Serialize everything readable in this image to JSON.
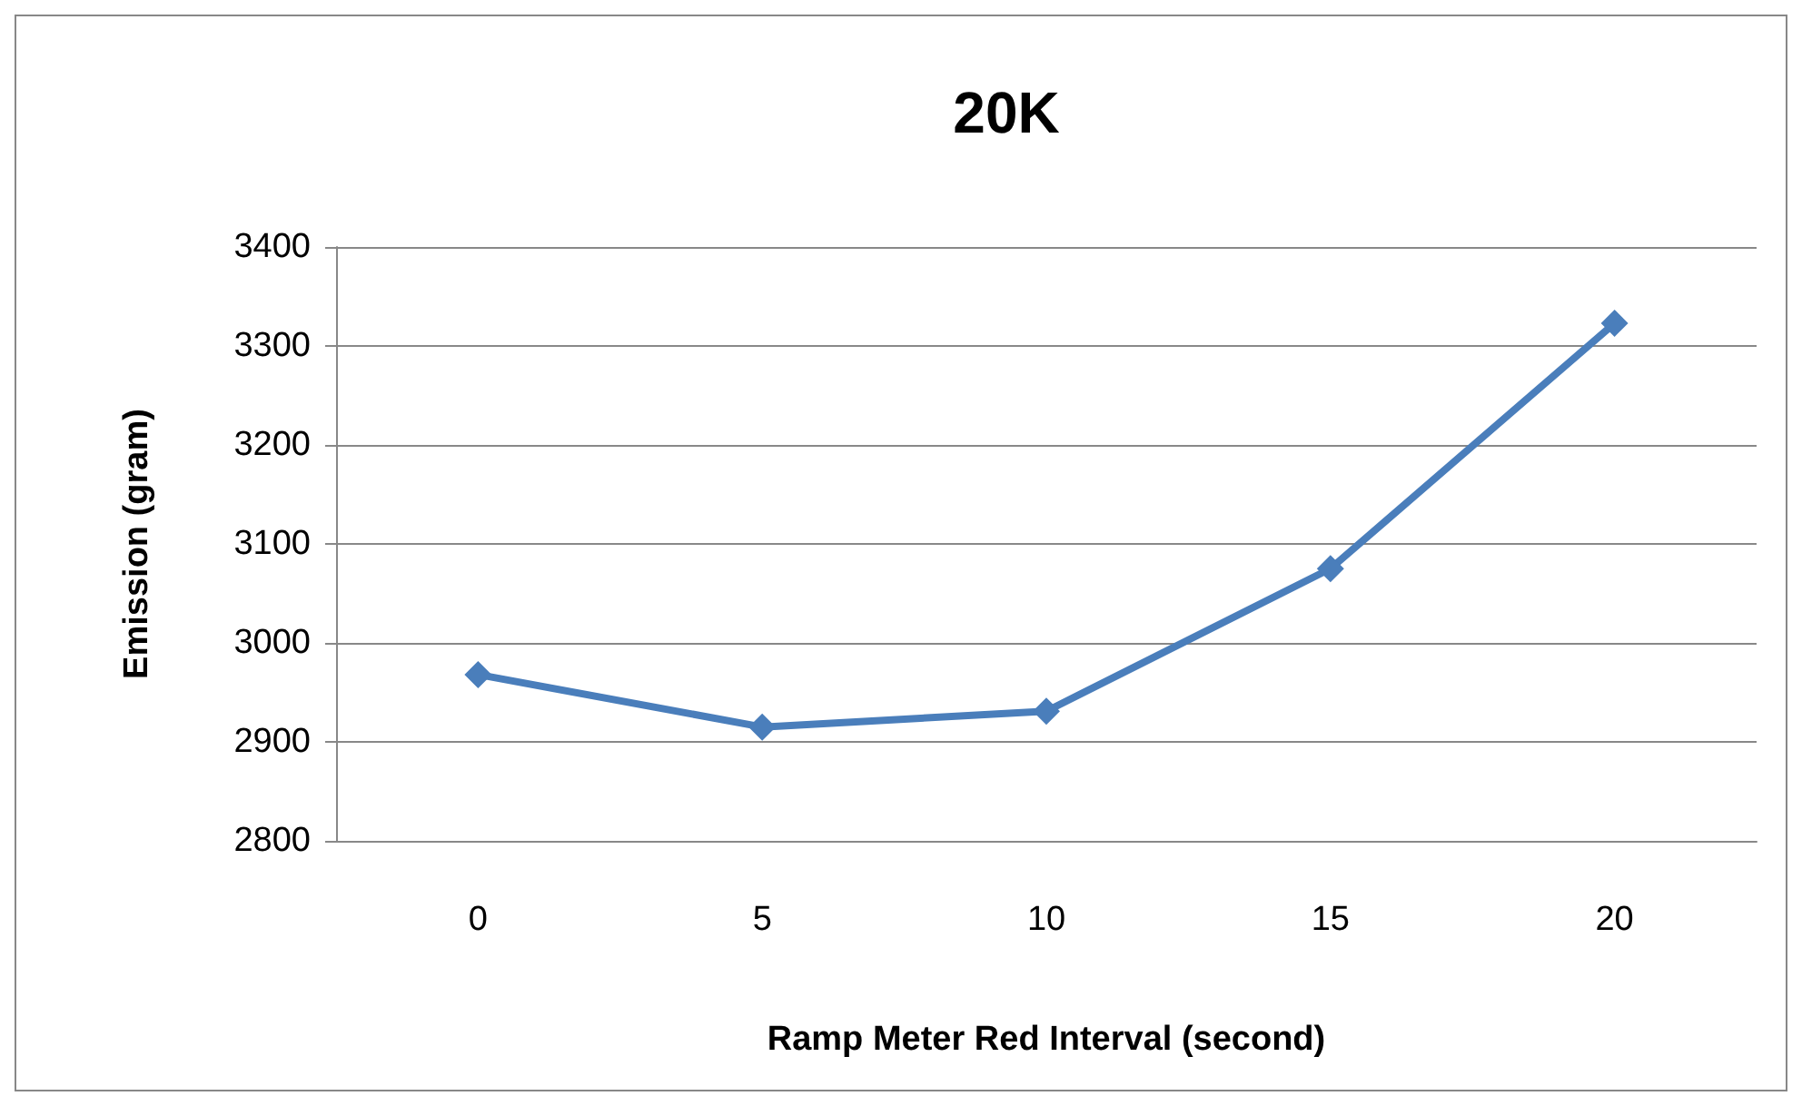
{
  "chart_data": {
    "type": "line",
    "title": "20K",
    "xlabel": "Ramp Meter Red Interval (second)",
    "ylabel": "Emission (gram)",
    "categories": [
      "0",
      "5",
      "10",
      "15",
      "20"
    ],
    "series": [
      {
        "color": "#4a7ebb",
        "values": [
          2968,
          2915,
          2931,
          3075,
          3323
        ]
      }
    ],
    "ylim": [
      2800,
      3400
    ],
    "yticks": [
      2800,
      2900,
      3000,
      3100,
      3200,
      3300,
      3400
    ],
    "grid": "y",
    "marker": "diamond",
    "line_style": "solid"
  }
}
